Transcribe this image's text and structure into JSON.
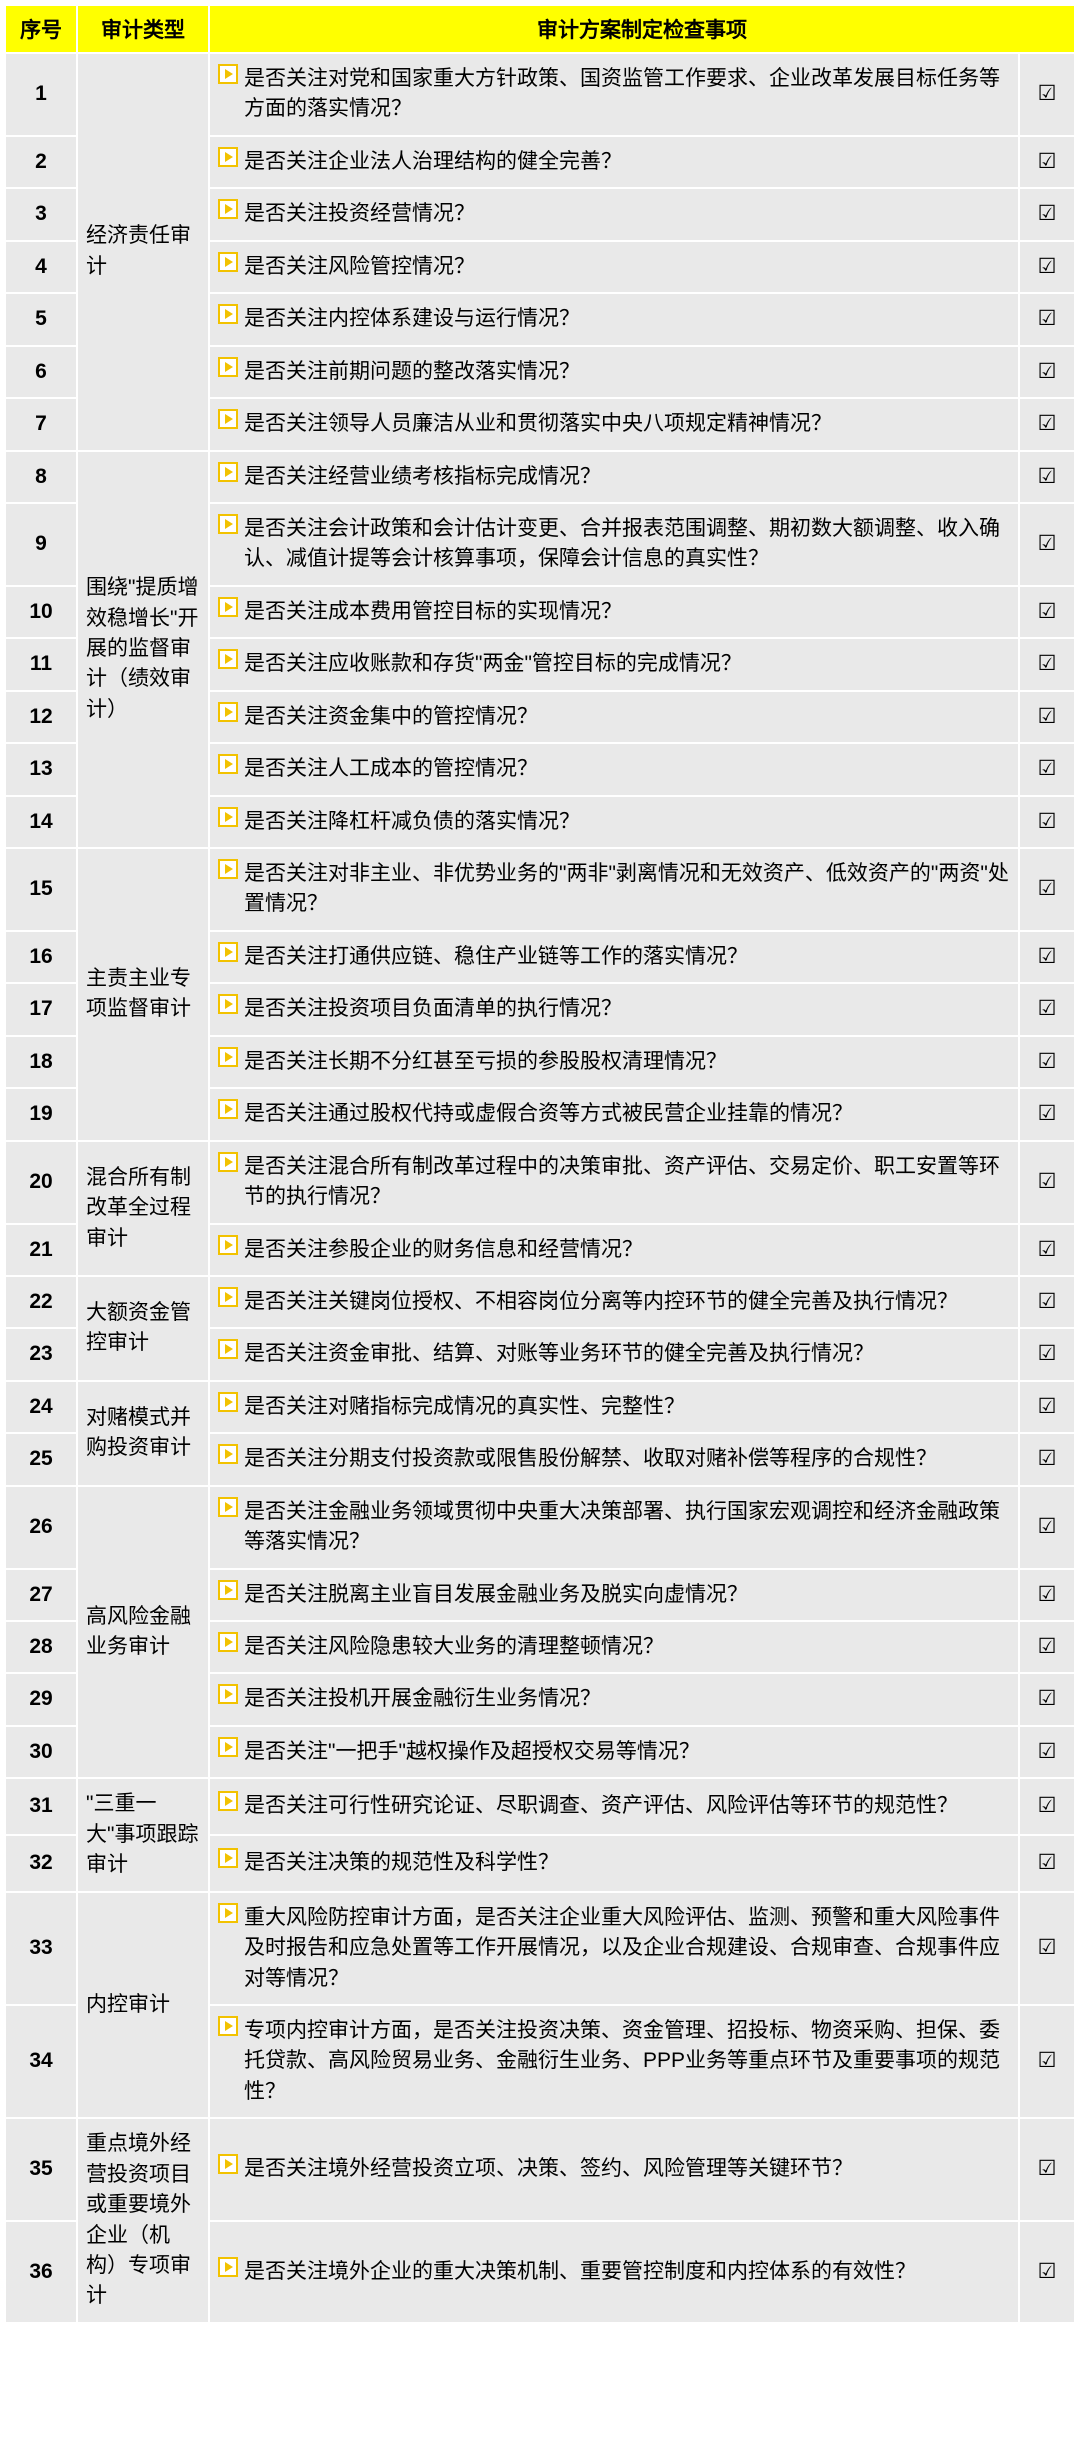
{
  "columns": {
    "seq": "序号",
    "type": "审计类型",
    "item": "审计方案制定检查事项"
  },
  "checkmark": "☑",
  "rows": [
    {
      "seq": "1",
      "type": "经济责任审计",
      "type_rowspan": 7,
      "item": "是否关注对党和国家重大方针政策、国资监管工作要求、企业改革发展目标任务等方面的落实情况？",
      "checked": true
    },
    {
      "seq": "2",
      "item": "是否关注企业法人治理结构的健全完善？",
      "checked": true
    },
    {
      "seq": "3",
      "item": "是否关注投资经营情况？",
      "checked": true
    },
    {
      "seq": "4",
      "item": "是否关注风险管控情况？",
      "checked": true
    },
    {
      "seq": "5",
      "item": "是否关注内控体系建设与运行情况？",
      "checked": true
    },
    {
      "seq": "6",
      "item": "是否关注前期问题的整改落实情况？",
      "checked": true
    },
    {
      "seq": "7",
      "item": "是否关注领导人员廉洁从业和贯彻落实中央八项规定精神情况？",
      "checked": true
    },
    {
      "seq": "8",
      "type": "围绕\"提质增效稳增长\"开展的监督审计（绩效审计）",
      "type_rowspan": 7,
      "item": "是否关注经营业绩考核指标完成情况？",
      "checked": true
    },
    {
      "seq": "9",
      "item": "是否关注会计政策和会计估计变更、合并报表范围调整、期初数大额调整、收入确认、减值计提等会计核算事项，保障会计信息的真实性？",
      "checked": true
    },
    {
      "seq": "10",
      "item": "是否关注成本费用管控目标的实现情况？",
      "checked": true
    },
    {
      "seq": "11",
      "item": "是否关注应收账款和存货\"两金\"管控目标的完成情况？",
      "checked": true
    },
    {
      "seq": "12",
      "item": "是否关注资金集中的管控情况？",
      "checked": true
    },
    {
      "seq": "13",
      "item": "是否关注人工成本的管控情况？",
      "checked": true
    },
    {
      "seq": "14",
      "item": "是否关注降杠杆减负债的落实情况？",
      "checked": true
    },
    {
      "seq": "15",
      "type": "主责主业专项监督审计",
      "type_rowspan": 5,
      "item": "是否关注对非主业、非优势业务的\"两非\"剥离情况和无效资产、低效资产的\"两资\"处置情况？",
      "checked": true
    },
    {
      "seq": "16",
      "item": "是否关注打通供应链、稳住产业链等工作的落实情况？",
      "checked": true
    },
    {
      "seq": "17",
      "item": "是否关注投资项目负面清单的执行情况？",
      "checked": true
    },
    {
      "seq": "18",
      "item": "是否关注长期不分红甚至亏损的参股股权清理情况？",
      "checked": true
    },
    {
      "seq": "19",
      "item": "是否关注通过股权代持或虚假合资等方式被民营企业挂靠的情况？",
      "checked": true
    },
    {
      "seq": "20",
      "type": "混合所有制改革全过程审计",
      "type_rowspan": 2,
      "item": "是否关注混合所有制改革过程中的决策审批、资产评估、交易定价、职工安置等环节的执行情况？",
      "checked": true
    },
    {
      "seq": "21",
      "item": "是否关注参股企业的财务信息和经营情况？",
      "checked": true
    },
    {
      "seq": "22",
      "type": "大额资金管控审计",
      "type_rowspan": 2,
      "item": "是否关注关键岗位授权、不相容岗位分离等内控环节的健全完善及执行情况？",
      "checked": true
    },
    {
      "seq": "23",
      "item": "是否关注资金审批、结算、对账等业务环节的健全完善及执行情况？",
      "checked": true
    },
    {
      "seq": "24",
      "type": "对赌模式并购投资审计",
      "type_rowspan": 2,
      "item": "是否关注对赌指标完成情况的真实性、完整性？",
      "checked": true
    },
    {
      "seq": "25",
      "item": "是否关注分期支付投资款或限售股份解禁、收取对赌补偿等程序的合规性？",
      "checked": true
    },
    {
      "seq": "26",
      "type": "高风险金融\n业务审计",
      "type_rowspan": 5,
      "item": "是否关注金融业务领域贯彻中央重大决策部署、执行国家宏观调控和经济金融政策等落实情况？",
      "checked": true
    },
    {
      "seq": "27",
      "item": "是否关注脱离主业盲目发展金融业务及脱实向虚情况？",
      "checked": true
    },
    {
      "seq": "28",
      "item": "是否关注风险隐患较大业务的清理整顿情况？",
      "checked": true
    },
    {
      "seq": "29",
      "item": "是否关注投机开展金融衍生业务情况？",
      "checked": true
    },
    {
      "seq": "30",
      "item": "是否关注\"一把手\"越权操作及超授权交易等情况？",
      "checked": true
    },
    {
      "seq": "31",
      "type": "\"三重一大\"事项跟踪审计",
      "type_rowspan": 2,
      "item": "是否关注可行性研究论证、尽职调查、资产评估、风险评估等环节的规范性？",
      "checked": true
    },
    {
      "seq": "32",
      "item": "是否关注决策的规范性及科学性？",
      "checked": true
    },
    {
      "seq": "33",
      "type": "内控审计",
      "type_rowspan": 2,
      "item": "重大风险防控审计方面，是否关注企业重大风险评估、监测、预警和重大风险事件及时报告和应急处置等工作开展情况，以及企业合规建设、合规审查、合规事件应对等情况？",
      "checked": true
    },
    {
      "seq": "34",
      "item": "专项内控审计方面，是否关注投资决策、资金管理、招投标、物资采购、担保、委托贷款、高风险贸易业务、金融衍生业务、PPP业务等重点环节及重要事项的规范性？",
      "checked": true
    },
    {
      "seq": "35",
      "type": "重点境外经营投资项目或重要境外企业（机构）专项审计",
      "type_rowspan": 2,
      "item": "是否关注境外经营投资立项、决策、签约、风险管理等关键环节？",
      "checked": true
    },
    {
      "seq": "36",
      "item": "是否关注境外企业的重大决策机制、重要管控制度和内控体系的有效性？",
      "checked": true
    }
  ]
}
